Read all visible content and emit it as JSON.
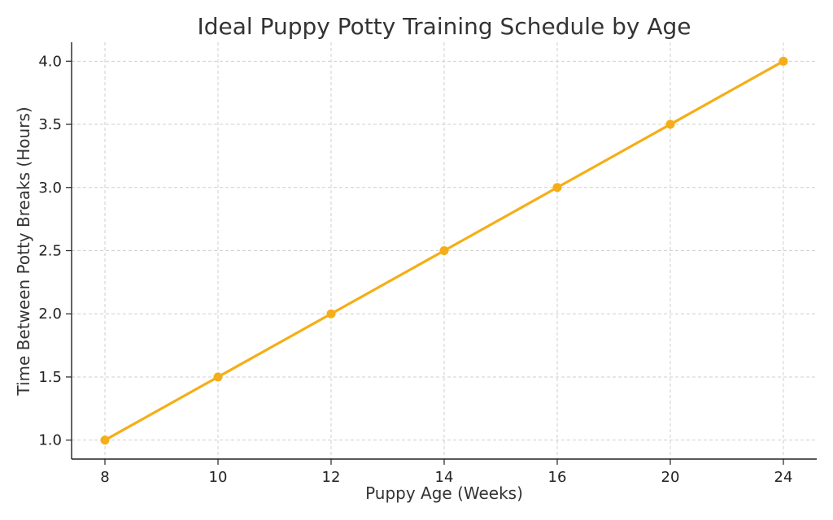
{
  "chart_data": {
    "type": "line",
    "title": "Ideal Puppy Potty Training Schedule by Age",
    "xlabel": "Puppy Age (Weeks)",
    "ylabel": "Time Between Potty Breaks (Hours)",
    "categories": [
      "8",
      "10",
      "12",
      "14",
      "16",
      "20",
      "24"
    ],
    "series": [
      {
        "values": [
          1.0,
          1.5,
          2.0,
          2.5,
          3.0,
          3.5,
          4.0
        ]
      }
    ],
    "y_ticks": [
      "1.0",
      "1.5",
      "2.0",
      "2.5",
      "3.0",
      "3.5",
      "4.0"
    ],
    "ylim": [
      0.85,
      4.15
    ],
    "grid": true,
    "line_color": "#F5AE17",
    "grid_color": "#CFCFCF",
    "axis_color": "#222222"
  }
}
